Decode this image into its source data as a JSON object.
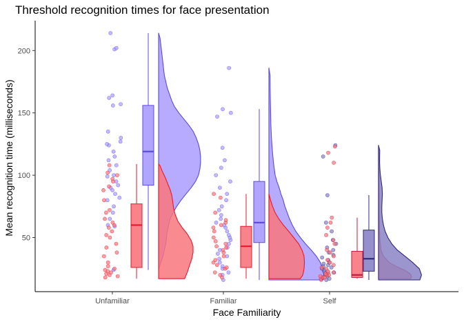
{
  "chart_data": {
    "type": "raincloud",
    "title": "Threshold recognition times for face presentation",
    "xlabel": "Face Familiarity",
    "ylabel": "Mean recognition time (milliseconds)",
    "categories": [
      "Unfamiliar",
      "Familiar",
      "Self"
    ],
    "ylim": [
      10,
      225
    ],
    "yticks": [
      50,
      100,
      150,
      200
    ],
    "grid": false,
    "legend": "none",
    "colors": {
      "red_fill": "#f8767d",
      "red_line": "#e8192c",
      "blue_fill": "#a99cff",
      "blue_line": "#5b49e6",
      "self_blue_fill": "#8a84c6",
      "self_blue_line": "#2f2880",
      "self_red_line": "#c41a3d"
    },
    "groups": [
      {
        "category": "Unfamiliar",
        "red": {
          "box": {
            "min": 17,
            "q1": 26,
            "median": 60,
            "q3": 77,
            "max": 109
          },
          "density": [
            [
              17,
              0.62
            ],
            [
              22,
              0.68
            ],
            [
              28,
              0.74
            ],
            [
              33,
              0.79
            ],
            [
              38,
              0.82
            ],
            [
              43,
              0.82
            ],
            [
              48,
              0.77
            ],
            [
              53,
              0.68
            ],
            [
              58,
              0.56
            ],
            [
              63,
              0.46
            ],
            [
              68,
              0.4
            ],
            [
              73,
              0.36
            ],
            [
              78,
              0.34
            ],
            [
              83,
              0.32
            ],
            [
              88,
              0.28
            ],
            [
              93,
              0.22
            ],
            [
              98,
              0.16
            ],
            [
              103,
              0.09
            ],
            [
              108,
              0.03
            ],
            [
              109,
              0.0
            ]
          ],
          "points": [
            18,
            19,
            20,
            21,
            22,
            23,
            24,
            25,
            27,
            30,
            35,
            38,
            42,
            45,
            50,
            52,
            55,
            58,
            60,
            62,
            65,
            70,
            72,
            80,
            88,
            91,
            95,
            97,
            100,
            102,
            108
          ]
        },
        "blue": {
          "box": {
            "min": 24,
            "q1": 92,
            "median": 119,
            "q3": 156,
            "max": 214
          },
          "density": [
            [
              24,
              0.0
            ],
            [
              30,
              0.03
            ],
            [
              35,
              0.06
            ],
            [
              40,
              0.08
            ],
            [
              45,
              0.1
            ],
            [
              50,
              0.11
            ],
            [
              55,
              0.12
            ],
            [
              60,
              0.14
            ],
            [
              65,
              0.16
            ],
            [
              70,
              0.2
            ],
            [
              75,
              0.25
            ],
            [
              80,
              0.31
            ],
            [
              85,
              0.38
            ],
            [
              90,
              0.45
            ],
            [
              95,
              0.51
            ],
            [
              100,
              0.55
            ],
            [
              105,
              0.57
            ],
            [
              110,
              0.58
            ],
            [
              115,
              0.58
            ],
            [
              120,
              0.57
            ],
            [
              125,
              0.55
            ],
            [
              130,
              0.52
            ],
            [
              135,
              0.48
            ],
            [
              140,
              0.42
            ],
            [
              145,
              0.35
            ],
            [
              150,
              0.28
            ],
            [
              155,
              0.22
            ],
            [
              160,
              0.18
            ],
            [
              165,
              0.15
            ],
            [
              170,
              0.12
            ],
            [
              175,
              0.1
            ],
            [
              180,
              0.08
            ],
            [
              185,
              0.07
            ],
            [
              190,
              0.06
            ],
            [
              195,
              0.05
            ],
            [
              200,
              0.04
            ],
            [
              205,
              0.03
            ],
            [
              210,
              0.02
            ],
            [
              214,
              0.0
            ]
          ],
          "points": [
            24,
            59,
            60,
            65,
            70,
            75,
            80,
            82,
            85,
            88,
            90,
            92,
            95,
            99,
            100,
            104,
            108,
            112,
            115,
            119,
            124,
            125,
            127,
            130,
            135,
            156,
            157,
            162,
            164,
            201,
            202,
            214
          ]
        }
      },
      {
        "category": "Familiar",
        "red": {
          "box": {
            "min": 17,
            "q1": 26,
            "median": 43,
            "q3": 59,
            "max": 85
          },
          "density": [
            [
              17,
              0.76
            ],
            [
              20,
              0.82
            ],
            [
              25,
              0.85
            ],
            [
              30,
              0.86
            ],
            [
              35,
              0.85
            ],
            [
              40,
              0.8
            ],
            [
              45,
              0.72
            ],
            [
              50,
              0.6
            ],
            [
              55,
              0.48
            ],
            [
              60,
              0.35
            ],
            [
              65,
              0.24
            ],
            [
              70,
              0.15
            ],
            [
              75,
              0.09
            ],
            [
              80,
              0.04
            ],
            [
              85,
              0.0
            ]
          ],
          "points": [
            18,
            20,
            22,
            25,
            26,
            28,
            30,
            32,
            35,
            38,
            40,
            42,
            43,
            45,
            47,
            50,
            55,
            58,
            60,
            62,
            64,
            70,
            82,
            85
          ]
        },
        "blue": {
          "box": {
            "min": 16,
            "q1": 46,
            "median": 62,
            "q3": 95,
            "max": 153
          },
          "density": [
            [
              16,
              0.95
            ],
            [
              20,
              0.96
            ],
            [
              25,
              0.94
            ],
            [
              30,
              0.9
            ],
            [
              35,
              0.83
            ],
            [
              40,
              0.74
            ],
            [
              45,
              0.64
            ],
            [
              50,
              0.55
            ],
            [
              55,
              0.47
            ],
            [
              60,
              0.41
            ],
            [
              65,
              0.36
            ],
            [
              70,
              0.32
            ],
            [
              75,
              0.28
            ],
            [
              80,
              0.25
            ],
            [
              85,
              0.21
            ],
            [
              90,
              0.18
            ],
            [
              95,
              0.14
            ],
            [
              100,
              0.11
            ],
            [
              110,
              0.08
            ],
            [
              120,
              0.06
            ],
            [
              130,
              0.045
            ],
            [
              140,
              0.035
            ],
            [
              150,
              0.03
            ],
            [
              160,
              0.025
            ],
            [
              170,
              0.022
            ],
            [
              180,
              0.02
            ],
            [
              186,
              0.0
            ]
          ],
          "points": [
            16,
            20,
            22,
            25,
            27,
            30,
            33,
            35,
            37,
            40,
            42,
            45,
            48,
            50,
            52,
            55,
            58,
            60,
            62,
            65,
            68,
            72,
            75,
            80,
            85,
            90,
            95,
            100,
            106,
            112,
            122,
            147,
            150,
            153,
            186
          ]
        }
      },
      {
        "category": "Self",
        "red": {
          "box": {
            "min": 17,
            "q1": 18,
            "median": 20,
            "q3": 39,
            "max": 66
          },
          "density": [
            [
              17,
              0.78
            ],
            [
              19,
              0.8
            ],
            [
              21,
              0.76
            ],
            [
              24,
              0.62
            ],
            [
              27,
              0.42
            ],
            [
              30,
              0.26
            ],
            [
              35,
              0.12
            ],
            [
              40,
              0.06
            ],
            [
              50,
              0.03
            ],
            [
              60,
              0.02
            ],
            [
              70,
              0.015
            ],
            [
              80,
              0.013
            ],
            [
              90,
              0.012
            ],
            [
              100,
              0.012
            ],
            [
              110,
              0.012
            ],
            [
              120,
              0.01
            ],
            [
              123,
              0.0
            ]
          ],
          "points": [
            16,
            17,
            18,
            18,
            19,
            20,
            20,
            21,
            22,
            22,
            23,
            25,
            26,
            28,
            30,
            32,
            35,
            38,
            40,
            45,
            48,
            52,
            58,
            62,
            66,
            110,
            118,
            123
          ]
        },
        "blue": {
          "box": {
            "min": 16,
            "q1": 23,
            "median": 33,
            "q3": 56,
            "max": 84
          },
          "density": [
            [
              16,
              0.75
            ],
            [
              20,
              0.78
            ],
            [
              25,
              0.74
            ],
            [
              30,
              0.62
            ],
            [
              35,
              0.48
            ],
            [
              40,
              0.34
            ],
            [
              45,
              0.24
            ],
            [
              50,
              0.17
            ],
            [
              55,
              0.12
            ],
            [
              60,
              0.09
            ],
            [
              65,
              0.07
            ],
            [
              70,
              0.06
            ],
            [
              75,
              0.06
            ],
            [
              80,
              0.065
            ],
            [
              85,
              0.07
            ],
            [
              90,
              0.065
            ],
            [
              95,
              0.05
            ],
            [
              100,
              0.035
            ],
            [
              105,
              0.025
            ],
            [
              110,
              0.02
            ],
            [
              115,
              0.02
            ],
            [
              120,
              0.022
            ],
            [
              124,
              0.0
            ]
          ],
          "points": [
            16,
            17,
            18,
            19,
            20,
            21,
            22,
            23,
            24,
            25,
            26,
            27,
            28,
            29,
            30,
            32,
            34,
            36,
            38,
            40,
            42,
            45,
            48,
            55,
            62,
            84,
            115,
            124
          ]
        }
      }
    ]
  }
}
